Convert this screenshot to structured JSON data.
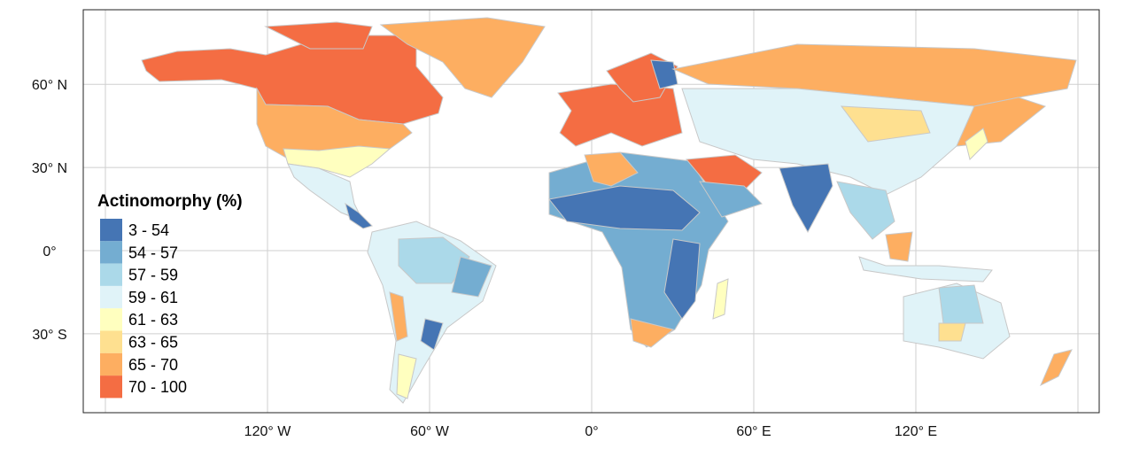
{
  "map": {
    "type": "choropleth",
    "projection": "equirectangular",
    "grid": true,
    "x_ticks": [
      {
        "label": "120° W",
        "lon": -120
      },
      {
        "label": "60° W",
        "lon": -60
      },
      {
        "label": "0°",
        "lon": 0
      },
      {
        "label": "60° E",
        "lon": 60
      },
      {
        "label": "120° E",
        "lon": 120
      }
    ],
    "y_ticks": [
      {
        "label": "60° N",
        "lat": 60
      },
      {
        "label": "30° N",
        "lat": 30
      },
      {
        "label": "0°",
        "lat": 0
      },
      {
        "label": "30° S",
        "lat": -30
      }
    ],
    "grid_lons": [
      -180,
      -120,
      -60,
      0,
      60,
      120,
      180
    ],
    "grid_lats": [
      60,
      30,
      0,
      -30
    ]
  },
  "legend": {
    "title": "Actinomorphy (%)",
    "placement": "bottom-left",
    "classes": [
      {
        "label": "3 - 54",
        "color": "#4575b4"
      },
      {
        "label": "54 - 57",
        "color": "#74add1"
      },
      {
        "label": "57 - 59",
        "color": "#abd9e9"
      },
      {
        "label": "59 - 61",
        "color": "#e0f3f8"
      },
      {
        "label": "61 - 63",
        "color": "#ffffbf"
      },
      {
        "label": "63 - 65",
        "color": "#fee090"
      },
      {
        "label": "65 - 70",
        "color": "#fdae61"
      },
      {
        "label": "70 - 100",
        "color": "#f46d43"
      }
    ]
  }
}
